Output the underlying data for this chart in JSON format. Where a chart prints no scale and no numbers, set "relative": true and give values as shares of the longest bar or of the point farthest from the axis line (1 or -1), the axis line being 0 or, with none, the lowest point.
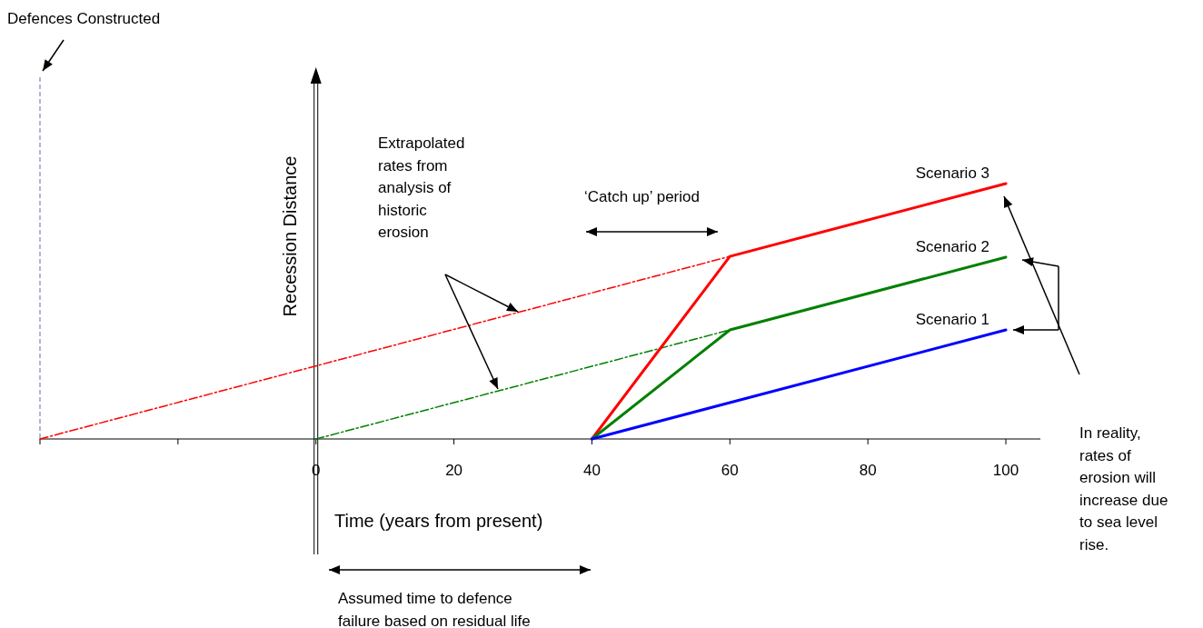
{
  "chart_data": {
    "type": "line",
    "relative": true,
    "xlabel": "Time (years from present)",
    "ylabel": "Recession Distance",
    "xlim": [
      -40,
      105
    ],
    "xticks": [
      {
        "value": -40,
        "label": null
      },
      {
        "value": -20,
        "label": null
      },
      0,
      20,
      40,
      60,
      80,
      100
    ],
    "series": [
      {
        "x": [
          -40,
          60
        ],
        "values": [
          0,
          0.715
        ],
        "color": "#ff0000",
        "line_style": "dashed"
      },
      {
        "x": [
          0,
          60
        ],
        "values": [
          0,
          0.427
        ],
        "color": "#008000",
        "line_style": "dashed"
      },
      {
        "name": "Scenario 3",
        "x": [
          40,
          60,
          100
        ],
        "values": [
          0,
          0.715,
          1
        ],
        "color": "#ff0000"
      },
      {
        "name": "Scenario 2",
        "x": [
          40,
          60,
          100
        ],
        "values": [
          0,
          0.427,
          0.712
        ],
        "color": "#008000"
      },
      {
        "name": "Scenario 1",
        "x": [
          40,
          100
        ],
        "values": [
          0,
          0.427
        ],
        "color": "#0000ff"
      }
    ],
    "ref_lines": [
      {
        "axis": "x",
        "value": -40,
        "label": "Defences Constructed",
        "color": "#8080c0",
        "line_style": "dashed"
      }
    ],
    "annotations": [
      "Extrapolated rates from analysis of historic erosion",
      "‘Catch up’ period",
      "Assumed time to defence failure based on residual life",
      "In reality, rates of erosion will increase due to sea level rise."
    ]
  }
}
